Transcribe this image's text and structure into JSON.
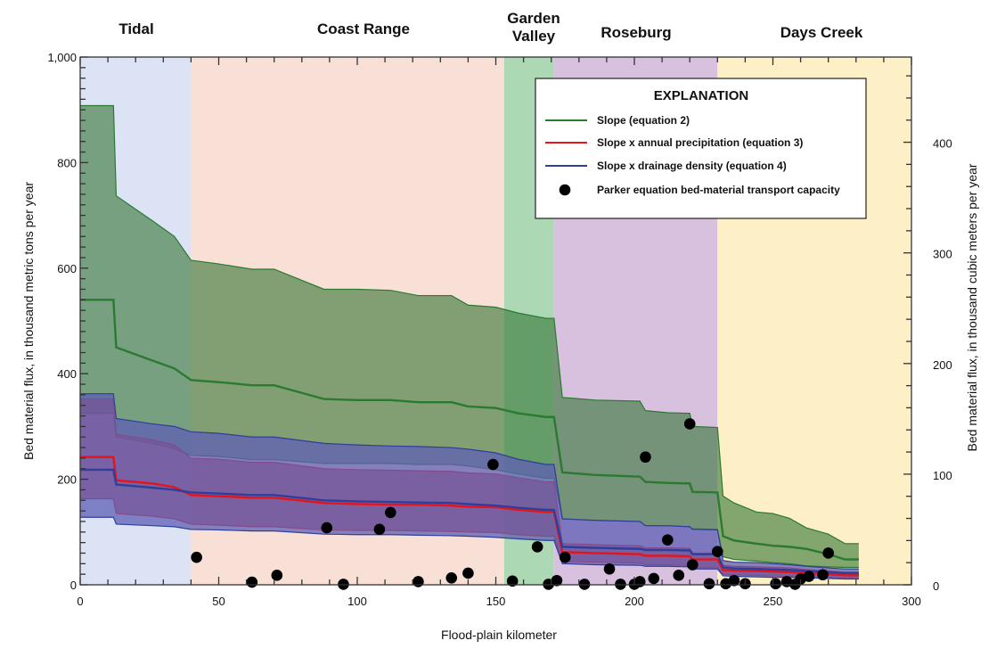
{
  "chart_data": {
    "type": "area",
    "title": "",
    "xlabel": "Flood-plain kilometer",
    "ylabel": "Bed material flux, in thousand metric tons per year",
    "ylabel_right": "Bed material flux, in thousand cubic meters  per year",
    "xlim": [
      0,
      300
    ],
    "ylim": [
      0,
      1000
    ],
    "ylim_right": [
      0,
      477
    ],
    "x_ticks": [
      0,
      50,
      100,
      150,
      200,
      250,
      300
    ],
    "x_tick_labels": [
      "0",
      "50",
      "100",
      "150",
      "200",
      "250",
      "300"
    ],
    "y_ticks": [
      0,
      200,
      400,
      600,
      800,
      1000
    ],
    "y_tick_labels": [
      "0",
      "200",
      "400",
      "600",
      "800",
      "1,000"
    ],
    "y_right_ticks": [
      0,
      100,
      200,
      300,
      400
    ],
    "y_right_tick_labels": [
      "0",
      "100",
      "200",
      "300",
      "400"
    ],
    "grid": false,
    "regions": [
      {
        "name": "Tidal",
        "x0": 0,
        "x1": 40,
        "color": "#dce3f5"
      },
      {
        "name": "Coast Range",
        "x0": 40,
        "x1": 153,
        "color": "#f9e0d6"
      },
      {
        "name": "Garden Valley",
        "x0": 153,
        "x1": 171,
        "color": "#acd9b4"
      },
      {
        "name": "Roseburg",
        "x0": 171,
        "x1": 230,
        "color": "#d8c0df"
      },
      {
        "name": "Days Creek",
        "x0": 230,
        "x1": 300,
        "color": "#fdefc6"
      }
    ],
    "region_labels": [
      "Tidal",
      "Coast Range",
      "Garden\nValley",
      "Roseburg",
      "Days Creek"
    ],
    "x": [
      0,
      12,
      13,
      26,
      34,
      40,
      50,
      62,
      70,
      88,
      100,
      112,
      122,
      134,
      140,
      150,
      158,
      168,
      171,
      174,
      186,
      202,
      204,
      212,
      220,
      221,
      230,
      232,
      236,
      244,
      250,
      256,
      262,
      270,
      276,
      281
    ],
    "series": [
      {
        "name": "Slope (equation 2)",
        "color": "#2a7a30",
        "fill": "rgba(56,120,56,0.62)",
        "values": [
          540,
          540,
          450,
          425,
          410,
          388,
          384,
          378,
          378,
          352,
          350,
          350,
          346,
          346,
          338,
          335,
          325,
          318,
          318,
          213,
          208,
          205,
          195,
          193,
          192,
          176,
          175,
          92,
          84,
          78,
          74,
          72,
          68,
          58,
          48,
          48
        ],
        "upper": [
          908,
          908,
          737,
          690,
          660,
          615,
          608,
          598,
          598,
          560,
          560,
          558,
          548,
          548,
          530,
          526,
          515,
          505,
          505,
          355,
          350,
          348,
          330,
          326,
          325,
          300,
          298,
          168,
          155,
          138,
          135,
          126,
          108,
          96,
          78,
          78
        ],
        "lower": [
          325,
          325,
          280,
          268,
          258,
          245,
          243,
          237,
          237,
          230,
          230,
          230,
          228,
          228,
          225,
          218,
          210,
          202,
          202,
          125,
          122,
          120,
          112,
          112,
          110,
          106,
          105,
          53,
          48,
          45,
          42,
          40,
          36,
          34,
          33,
          33
        ]
      },
      {
        "name": "Slope x annual precipitation (equation 3)",
        "color": "#e5141a",
        "fill": "rgba(185,50,60,0.70)",
        "values": [
          242,
          242,
          198,
          192,
          185,
          170,
          168,
          165,
          165,
          155,
          153,
          152,
          152,
          150,
          148,
          147,
          142,
          138,
          138,
          62,
          60,
          58,
          55,
          55,
          54,
          48,
          48,
          28,
          27,
          26,
          25,
          24,
          22,
          20,
          18,
          18
        ],
        "upper": [
          352,
          352,
          285,
          275,
          265,
          240,
          238,
          232,
          232,
          220,
          218,
          217,
          216,
          215,
          212,
          210,
          203,
          195,
          195,
          78,
          76,
          74,
          70,
          70,
          69,
          60,
          60,
          37,
          35,
          34,
          33,
          32,
          29,
          26,
          24,
          24
        ],
        "lower": [
          163,
          163,
          135,
          130,
          125,
          115,
          113,
          110,
          110,
          104,
          103,
          103,
          102,
          101,
          100,
          99,
          95,
          92,
          92,
          44,
          43,
          41,
          38,
          38,
          37,
          33,
          33,
          20,
          19,
          18,
          17,
          16,
          15,
          14,
          13,
          13
        ]
      },
      {
        "name": "Slope x drainage density (equation 4)",
        "color": "#2e3e9a",
        "fill": "rgba(95,95,180,0.75)",
        "values": [
          218,
          218,
          190,
          184,
          180,
          175,
          173,
          170,
          170,
          160,
          158,
          157,
          156,
          155,
          153,
          150,
          146,
          142,
          142,
          72,
          70,
          68,
          66,
          66,
          65,
          58,
          58,
          33,
          31,
          30,
          29,
          28,
          26,
          24,
          22,
          22
        ],
        "upper": [
          362,
          362,
          315,
          305,
          300,
          290,
          287,
          280,
          280,
          268,
          265,
          263,
          262,
          260,
          257,
          250,
          238,
          228,
          228,
          125,
          122,
          120,
          112,
          112,
          110,
          105,
          104,
          46,
          43,
          42,
          40,
          38,
          35,
          32,
          30,
          30
        ],
        "lower": [
          128,
          128,
          115,
          112,
          110,
          105,
          104,
          102,
          102,
          96,
          95,
          95,
          94,
          93,
          92,
          90,
          87,
          84,
          84,
          40,
          38,
          37,
          35,
          35,
          34,
          30,
          30,
          17,
          16,
          15,
          14,
          14,
          13,
          12,
          11,
          11
        ]
      }
    ],
    "scatter": {
      "name": "Parker equation bed-material transport capacity",
      "color": "#000000",
      "points": [
        [
          42,
          52
        ],
        [
          62,
          5
        ],
        [
          71,
          18
        ],
        [
          95,
          1
        ],
        [
          108,
          105
        ],
        [
          112,
          137
        ],
        [
          89,
          108
        ],
        [
          122,
          6
        ],
        [
          134,
          13
        ],
        [
          140,
          22
        ],
        [
          149,
          228
        ],
        [
          156,
          7
        ],
        [
          165,
          72
        ],
        [
          169,
          1
        ],
        [
          172,
          8
        ],
        [
          175,
          52
        ],
        [
          182,
          1
        ],
        [
          191,
          30
        ],
        [
          195,
          1
        ],
        [
          200,
          1
        ],
        [
          202,
          6
        ],
        [
          204,
          242
        ],
        [
          207,
          12
        ],
        [
          212,
          85
        ],
        [
          216,
          18
        ],
        [
          220,
          305
        ],
        [
          221,
          38
        ],
        [
          227,
          2
        ],
        [
          230,
          63
        ],
        [
          233,
          2
        ],
        [
          236,
          8
        ],
        [
          240,
          2
        ],
        [
          251,
          2
        ],
        [
          255,
          6
        ],
        [
          258,
          1
        ],
        [
          260,
          11
        ],
        [
          263,
          16
        ],
        [
          268,
          19
        ],
        [
          270,
          60
        ]
      ]
    },
    "legend": {
      "title": "EXPLANATION",
      "position": "top-right",
      "entries": [
        {
          "label": "Slope (equation 2)",
          "type": "line",
          "color": "#2a7a30"
        },
        {
          "label": "Slope x annual precipitation (equation 3)",
          "type": "line",
          "color": "#e5141a"
        },
        {
          "label": "Slope x drainage density (equation 4)",
          "type": "line",
          "color": "#2e3e9a"
        },
        {
          "label": "Parker equation bed-material transport capacity",
          "type": "marker",
          "color": "#000000"
        }
      ]
    }
  }
}
